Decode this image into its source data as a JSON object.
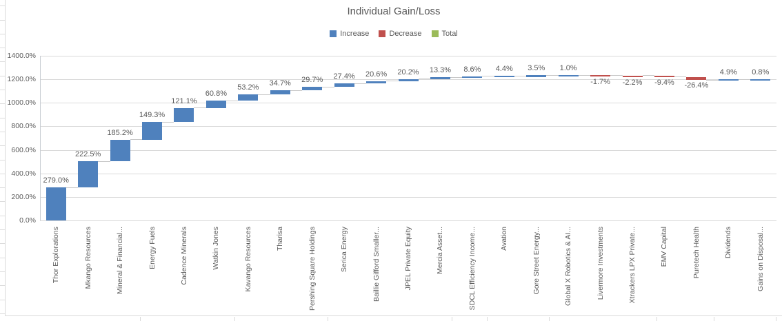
{
  "chart_data": {
    "type": "bar",
    "subtype": "waterfall",
    "title": "Individual Gain/Loss",
    "xlabel": "",
    "ylabel": "",
    "ylim": [
      0,
      1400
    ],
    "ytick_step": 200,
    "ytick_labels": [
      "0.0%",
      "200.0%",
      "400.0%",
      "600.0%",
      "800.0%",
      "1000.0%",
      "1200.0%",
      "1400.0%"
    ],
    "grid": true,
    "legend_position": "top-center",
    "categories": [
      "Thor Explorations",
      "Mkango Resources",
      "Mineral & Financial...",
      "Energy Fuels",
      "Cadence Minerals",
      "Watkin Jones",
      "Kavango Resources",
      "Tharisa",
      "Pershing Square Holdings",
      "Serica Energy",
      "Baillie Gifford Smaller...",
      "JPEL Private Equity",
      "Mercia Asset...",
      "SDCL Efficiency Income...",
      "Avation",
      "Gore Street Energy...",
      "Global X Robotics & AI...",
      "Livermore Investments",
      "Xtrackers LPX Private...",
      "EMV Capital",
      "Puretech Health",
      "Dividends",
      "Gains on Disposal..."
    ],
    "values": [
      279.0,
      222.5,
      185.2,
      149.3,
      121.1,
      60.8,
      53.2,
      34.7,
      29.7,
      27.4,
      20.6,
      20.2,
      13.3,
      8.6,
      4.4,
      3.5,
      1.0,
      -1.7,
      -2.2,
      -9.4,
      -26.4,
      4.9,
      0.8
    ],
    "data_labels": [
      "279.0%",
      "222.5%",
      "185.2%",
      "149.3%",
      "121.1%",
      "60.8%",
      "53.2%",
      "34.7%",
      "29.7%",
      "27.4%",
      "20.6%",
      "20.2%",
      "13.3%",
      "8.6%",
      "4.4%",
      "3.5%",
      "1.0%",
      "-1.7%",
      "-2.2%",
      "-9.4%",
      "-26.4%",
      "4.9%",
      "0.8%"
    ],
    "cumulative_start": 0
  },
  "legend": {
    "items": [
      {
        "label": "Increase",
        "color": "#4F81BD"
      },
      {
        "label": "Decrease",
        "color": "#C0504D"
      },
      {
        "label": "Total",
        "color": "#9BBB59"
      }
    ]
  },
  "colors": {
    "increase": "#4F81BD",
    "decrease": "#C0504D",
    "total": "#9BBB59",
    "gridline": "#D9D9D9",
    "text": "#595959"
  }
}
